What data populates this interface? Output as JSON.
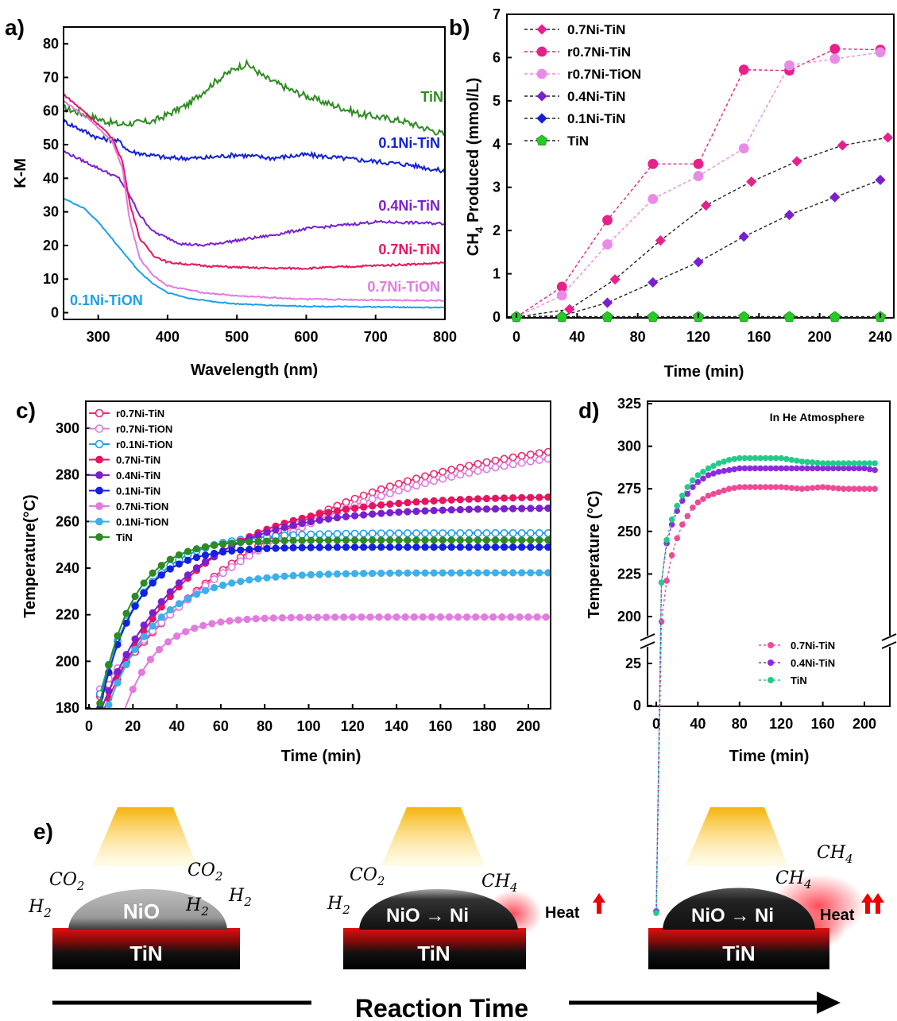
{
  "panel_labels": {
    "a": "a)",
    "b": "b)",
    "c": "c)",
    "d": "d)",
    "e": "e)"
  },
  "chart_data": [
    {
      "panel": "a",
      "type": "line",
      "xlabel": "Wavelength (nm)",
      "ylabel": "K-M",
      "xlim": [
        250,
        800
      ],
      "ylim": [
        -2,
        85
      ],
      "xticks": [
        300,
        400,
        500,
        600,
        700,
        800
      ],
      "yticks": [
        0,
        10,
        20,
        30,
        40,
        50,
        60,
        70,
        80
      ],
      "series": [
        {
          "name": "TiN",
          "color": "#2e8b22",
          "noise": 1.0,
          "x": [
            250,
            280,
            310,
            330,
            380,
            430,
            470,
            500,
            515,
            540,
            580,
            620,
            680,
            740,
            800
          ],
          "y": [
            61,
            59,
            57,
            56,
            57,
            62,
            69,
            73,
            74,
            70,
            66,
            63,
            59,
            57,
            53
          ]
        },
        {
          "name": "0.1Ni-TiN",
          "color": "#1220d8",
          "noise": 0.7,
          "x": [
            250,
            300,
            330,
            345,
            400,
            450,
            500,
            550,
            600,
            650,
            700,
            750,
            800
          ],
          "y": [
            57,
            52,
            51,
            48,
            46,
            46,
            47,
            46,
            47,
            46,
            45,
            44,
            42
          ]
        },
        {
          "name": "0.4Ni-TiN",
          "color": "#7a1fd0",
          "noise": 0.4,
          "x": [
            250,
            300,
            330,
            345,
            360,
            380,
            420,
            450,
            500,
            550,
            600,
            650,
            700,
            750,
            800
          ],
          "y": [
            48,
            43,
            40,
            35,
            29,
            24,
            20.5,
            20,
            21.5,
            23,
            25,
            26,
            27,
            26.8,
            26.5
          ]
        },
        {
          "name": "0.7Ni-TiN",
          "color": "#e8145f",
          "noise": 0.3,
          "x": [
            250,
            290,
            320,
            335,
            345,
            360,
            380,
            400,
            450,
            500,
            550,
            600,
            700,
            800
          ],
          "y": [
            65,
            58,
            52,
            45,
            33,
            22,
            17,
            15,
            14,
            13.5,
            13.2,
            13.2,
            14,
            14.8
          ]
        },
        {
          "name": "0.7Ni-TiON",
          "color": "#e27ae0",
          "noise": 0.2,
          "x": [
            250,
            290,
            320,
            335,
            345,
            360,
            380,
            400,
            450,
            500,
            550,
            600,
            700,
            800
          ],
          "y": [
            63,
            57,
            51,
            43,
            28,
            16,
            11,
            8,
            6,
            5,
            4.5,
            4,
            3.8,
            3.6
          ]
        },
        {
          "name": "0.1Ni-TiON",
          "color": "#1aa0ec",
          "noise": 0.15,
          "x": [
            250,
            280,
            300,
            320,
            340,
            360,
            380,
            400,
            430,
            470,
            500,
            550,
            600,
            700,
            800
          ],
          "y": [
            34,
            31,
            27,
            22,
            17,
            12,
            8.5,
            6,
            4.3,
            3.2,
            2.6,
            2.2,
            1.9,
            1.7,
            1.5
          ]
        }
      ],
      "labels": [
        {
          "text": "TiN",
          "color": "#2e8b22"
        },
        {
          "text": "0.1Ni-TiN",
          "color": "#1220d8"
        },
        {
          "text": "0.4Ni-TiN",
          "color": "#7a1fd0"
        },
        {
          "text": "0.7Ni-TiN",
          "color": "#e8145f"
        },
        {
          "text": "0.7Ni-TiON",
          "color": "#e27ae0"
        },
        {
          "text": "0.1Ni-TiON",
          "color": "#1aa0ec"
        }
      ]
    },
    {
      "panel": "b",
      "type": "scatter",
      "xlabel": "Time (min)",
      "ylabel_main": "CH",
      "ylabel_sub": "4",
      "ylabel_rest": " Produced (mmol/L)",
      "xlim": [
        0,
        245
      ],
      "ylim": [
        0,
        7
      ],
      "xticks": [
        0,
        40,
        80,
        120,
        160,
        200,
        240
      ],
      "yticks": [
        0,
        1,
        2,
        3,
        4,
        5,
        6,
        7
      ],
      "legend_position": "top-left",
      "series": [
        {
          "name": "0.7Ni-TiN",
          "color": "#e8208a",
          "marker": "diamond",
          "x": [
            0,
            35,
            65,
            95,
            125,
            155,
            185,
            215,
            245
          ],
          "y": [
            0,
            0.18,
            0.87,
            1.77,
            2.58,
            3.13,
            3.6,
            3.97,
            4.15
          ]
        },
        {
          "name": "r0.7Ni-TiN",
          "color": "#e8208a",
          "marker": "circle",
          "x": [
            0,
            30,
            60,
            90,
            120,
            150,
            180,
            210,
            240
          ],
          "y": [
            0,
            0.7,
            2.24,
            3.54,
            3.54,
            5.72,
            5.7,
            6.2,
            6.18
          ]
        },
        {
          "name": "r0.7Ni-TiON",
          "color": "#e98be6",
          "marker": "circle",
          "x": [
            0,
            30,
            60,
            90,
            120,
            150,
            180,
            210,
            240
          ],
          "y": [
            0,
            0.5,
            1.68,
            2.73,
            3.26,
            3.9,
            5.82,
            5.97,
            6.12
          ]
        },
        {
          "name": "0.4Ni-TiN",
          "color": "#7a1fd0",
          "marker": "diamond",
          "x": [
            0,
            30,
            60,
            90,
            120,
            150,
            180,
            210,
            240
          ],
          "y": [
            0,
            0.03,
            0.33,
            0.8,
            1.27,
            1.86,
            2.36,
            2.77,
            3.17
          ]
        },
        {
          "name": "0.1Ni-TiN",
          "color": "#1320e0",
          "marker": "diamond",
          "x": [
            0,
            30,
            60,
            90,
            120,
            150,
            180,
            210,
            240
          ],
          "y": [
            0,
            0.01,
            0.01,
            0.01,
            0.01,
            0.01,
            0.01,
            0.01,
            0.01
          ]
        },
        {
          "name": "TiN",
          "color": "#22cc22",
          "marker": "pentagon",
          "x": [
            0,
            30,
            60,
            90,
            120,
            150,
            180,
            210,
            240
          ],
          "y": [
            0,
            0,
            0,
            0,
            0,
            0,
            0,
            0,
            0
          ]
        }
      ]
    },
    {
      "panel": "c",
      "type": "line",
      "xlabel": "Time (min)",
      "ylabel": "Temperature(°C)",
      "xlim": [
        -1,
        211
      ],
      "ylim": [
        180,
        305
      ],
      "xticks": [
        0,
        20,
        40,
        60,
        80,
        100,
        120,
        140,
        160,
        180,
        200
      ],
      "yticks": [
        180,
        200,
        220,
        240,
        260,
        280,
        300
      ],
      "legend_position": "top-left",
      "series": [
        {
          "name": "r0.7Ni-TiN",
          "color": "#ee2a6e",
          "open": true,
          "start": 185,
          "end": 302,
          "tau": 90,
          "shape": "exp",
          "x0": 5
        },
        {
          "name": "r0.7Ni-TiON",
          "color": "#e27ae0",
          "open": true,
          "start": 188,
          "end": 300,
          "tau": 95,
          "shape": "exp",
          "x0": 5
        },
        {
          "name": "r0.1Ni-TiON",
          "color": "#1aa0ec",
          "open": true,
          "start": 186,
          "end": 255,
          "tau": 20,
          "shape": "exp",
          "x0": 5
        },
        {
          "name": "0.7Ni-TiN",
          "color": "#e8145f",
          "open": false,
          "start": 175,
          "end": 271,
          "tau": 40,
          "shape": "exp",
          "x0": 5
        },
        {
          "name": "0.4Ni-TiN",
          "color": "#7a1fd0",
          "open": false,
          "start": 178,
          "end": 266,
          "tau": 36,
          "shape": "exp",
          "x0": 5
        },
        {
          "name": "0.1Ni-TiN",
          "color": "#1320e0",
          "open": false,
          "start": 180,
          "end": 249,
          "tau": 16,
          "shape": "exp",
          "x0": 5
        },
        {
          "name": "0.7Ni-TiON",
          "color": "#e27ae0",
          "open": false,
          "start": 150,
          "end": 219,
          "tau": 15,
          "shape": "exp",
          "x0": 8
        },
        {
          "name": "0.1Ni-TiON",
          "color": "#3cb0ec",
          "open": false,
          "start": 170,
          "end": 238,
          "tau": 22,
          "shape": "exp",
          "x0": 5
        },
        {
          "name": "TiN",
          "color": "#2e8b22",
          "open": false,
          "start": 182,
          "end": 252,
          "tau": 15,
          "shape": "exp",
          "x0": 5
        }
      ]
    },
    {
      "panel": "d",
      "type": "line",
      "title": "In He Atmosphere",
      "xlabel": "Time (min)",
      "ylabel": "Temperature (°C)",
      "xlim": [
        -5,
        215
      ],
      "yticks": [
        0,
        25,
        200,
        225,
        250,
        275,
        300,
        325
      ],
      "axis_break": [
        25,
        200
      ],
      "xticks": [
        0,
        40,
        80,
        120,
        160,
        200
      ],
      "legend_position": "bottom-right",
      "series": [
        {
          "name": "0.7Ni-TiN",
          "color": "#ef4a96",
          "x": [
            0,
            5,
            10,
            15,
            20,
            25,
            30,
            35,
            40,
            50,
            60,
            70,
            80,
            100,
            120,
            140,
            160,
            180,
            200,
            210
          ],
          "y": [
            27,
            197,
            221,
            236,
            246,
            254,
            259,
            264,
            267,
            271,
            273,
            275,
            276,
            276,
            276,
            275,
            276,
            275,
            275,
            275
          ]
        },
        {
          "name": "0.4Ni-TiN",
          "color": "#8a2be2",
          "x": [
            0,
            5,
            10,
            15,
            20,
            25,
            30,
            35,
            40,
            50,
            60,
            70,
            80,
            100,
            120,
            140,
            160,
            180,
            200,
            210
          ],
          "y": [
            27,
            220,
            243,
            254,
            262,
            268,
            272,
            276,
            279,
            283,
            285,
            286,
            287,
            287,
            287,
            287,
            287,
            287,
            287,
            286
          ]
        },
        {
          "name": "TiN",
          "color": "#22cc88",
          "x": [
            0,
            5,
            10,
            15,
            20,
            25,
            30,
            35,
            40,
            50,
            60,
            70,
            80,
            100,
            120,
            140,
            160,
            180,
            200,
            210
          ],
          "y": [
            26,
            220,
            245,
            257,
            265,
            271,
            276,
            280,
            283,
            287,
            290,
            292,
            293,
            293,
            293,
            291,
            290,
            290,
            290,
            290
          ]
        }
      ]
    }
  ],
  "scheme": {
    "support": "TiN",
    "stage1": {
      "particle": "NiO",
      "mols": [
        "CO",
        "H",
        "CO",
        "H"
      ]
    },
    "stage2": {
      "particle": "NiO → Ni",
      "heat": "Heat"
    },
    "stage3": {
      "particle": "NiO → Ni",
      "heat": "Heat"
    },
    "mol_co2": "CO",
    "mol_h2": "H",
    "mol_ch4": "CH",
    "sub2": "2",
    "sub4": "4",
    "reaction_time": "Reaction Time"
  }
}
